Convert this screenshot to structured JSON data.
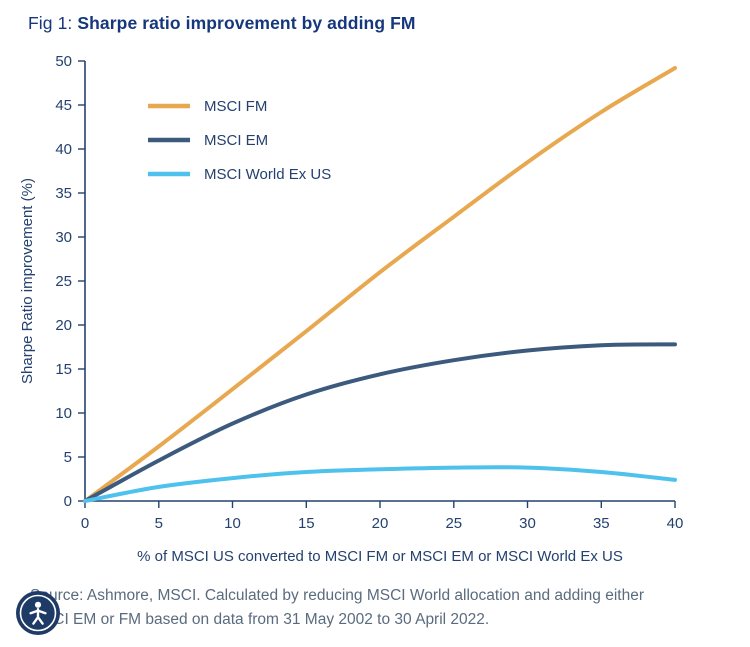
{
  "title": {
    "label": "Fig 1:",
    "text": "Sharpe ratio improvement by adding FM"
  },
  "chart_data": {
    "type": "line",
    "x": [
      0,
      5,
      10,
      15,
      20,
      25,
      30,
      35,
      40
    ],
    "series": [
      {
        "name": "MSCI FM",
        "color": "#E8A850",
        "values": [
          0,
          6.2,
          12.7,
          19.3,
          26.0,
          32.3,
          38.5,
          44.2,
          49.2
        ]
      },
      {
        "name": "MSCI EM",
        "color": "#3C5A7E",
        "values": [
          0,
          4.6,
          8.8,
          12.1,
          14.4,
          16.0,
          17.1,
          17.7,
          17.8
        ]
      },
      {
        "name": "MSCI World Ex US",
        "color": "#4EC1EC",
        "values": [
          0,
          1.6,
          2.6,
          3.3,
          3.6,
          3.8,
          3.8,
          3.3,
          2.4
        ]
      }
    ],
    "xlabel": "% of MSCI US converted to MSCI FM or MSCI EM or MSCI World Ex US",
    "ylabel": "Sharpe Ratio improvement (%)",
    "xlim": [
      0,
      40
    ],
    "ylim": [
      0,
      50
    ],
    "x_ticks": [
      0,
      5,
      10,
      15,
      20,
      25,
      30,
      35,
      40
    ],
    "y_ticks": [
      0,
      5,
      10,
      15,
      20,
      25,
      30,
      35,
      40,
      45,
      50
    ],
    "grid": false,
    "legend_position": "top-left-inside"
  },
  "source": {
    "lines": [
      "Source: Ashmore, MSCI. Calculated by reducing MSCI World allocation and adding either",
      "MSCI EM or FM based on data from 31 May 2002 to 30 April 2022."
    ]
  },
  "icons": {
    "accessibility": "accessibility-person-icon"
  },
  "colors": {
    "title": "#16377C",
    "axis": "#24416F",
    "tick_text": "#24416F",
    "source_text": "#5A6B7E",
    "accessibility_bg": "#1E3A66",
    "series_fm": "#E8A850",
    "series_em": "#3C5A7E",
    "series_world_ex_us": "#4EC1EC"
  }
}
